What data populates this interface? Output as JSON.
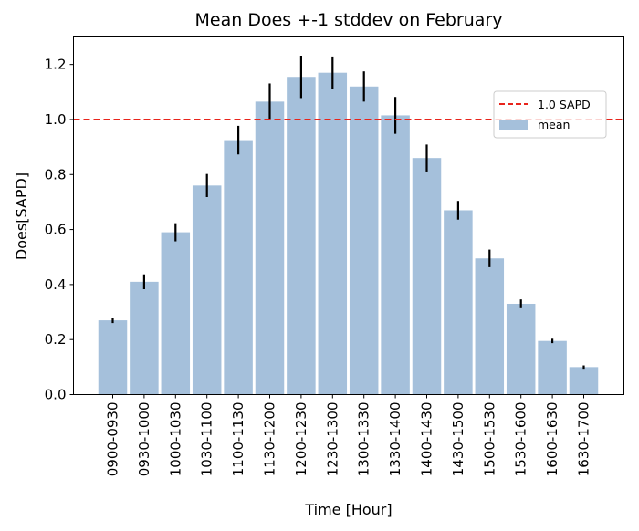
{
  "chart_data": {
    "type": "bar",
    "title": "Mean Does +-1 stddev on February",
    "xlabel": "Time [Hour]",
    "ylabel": "Does[SAPD]",
    "categories": [
      "0900-0930",
      "0930-1000",
      "1000-1030",
      "1030-1100",
      "1100-1130",
      "1130-1200",
      "1200-1230",
      "1230-1300",
      "1300-1330",
      "1330-1400",
      "1400-1430",
      "1430-1500",
      "1500-1530",
      "1530-1600",
      "1600-1630",
      "1630-1700"
    ],
    "series": [
      {
        "name": "mean",
        "values": [
          0.27,
          0.41,
          0.59,
          0.76,
          0.925,
          1.065,
          1.155,
          1.17,
          1.12,
          1.015,
          0.86,
          0.67,
          0.495,
          0.33,
          0.195,
          0.1
        ],
        "stddev": [
          0.01,
          0.027,
          0.033,
          0.042,
          0.052,
          0.066,
          0.077,
          0.059,
          0.055,
          0.067,
          0.049,
          0.034,
          0.032,
          0.016,
          0.008,
          0.006
        ],
        "color": "#a5c0db"
      }
    ],
    "reference_line": {
      "name": "1.0 SAPD",
      "value": 1.0,
      "color": "#e8241c",
      "style": "dashed"
    },
    "ylim": [
      0,
      1.3
    ],
    "yticks": [
      "0.0",
      "0.2",
      "0.4",
      "0.6",
      "0.8",
      "1.0",
      "1.2"
    ],
    "grid": false,
    "legend": {
      "position": "upper-right",
      "entries": [
        "1.0 SAPD",
        "mean"
      ]
    },
    "errorbar_color": "#000000"
  }
}
